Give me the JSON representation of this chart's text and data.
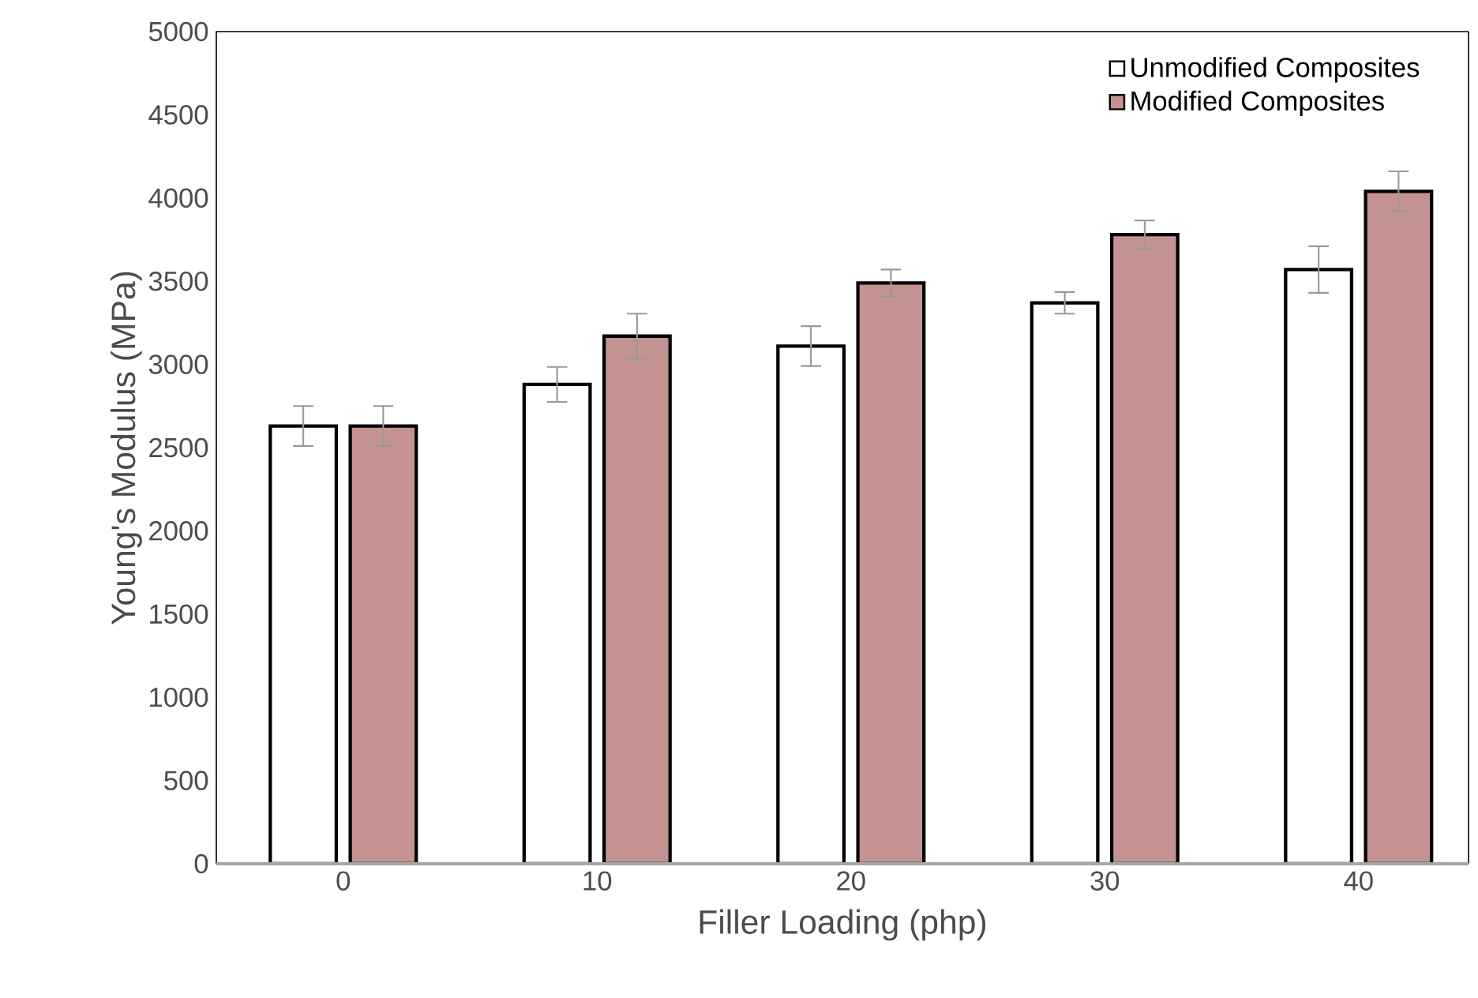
{
  "chart_data": {
    "type": "bar",
    "xlabel": "Filler Loading (php)",
    "ylabel": "Young's Modulus (MPa)",
    "categories": [
      "0",
      "10",
      "20",
      "30",
      "40"
    ],
    "series": [
      {
        "name": "Unmodified Composites",
        "color": "#ffffff",
        "values": [
          2630,
          2880,
          3110,
          3370,
          3570
        ],
        "errors": [
          120,
          105,
          120,
          65,
          140
        ]
      },
      {
        "name": "Modified Composites",
        "color": "#c49391",
        "values": [
          2630,
          3170,
          3490,
          3780,
          4040
        ],
        "errors": [
          120,
          135,
          80,
          85,
          120
        ]
      }
    ],
    "ylim": [
      0,
      5000
    ],
    "yticks": [
      0,
      500,
      1000,
      1500,
      2000,
      2500,
      3000,
      3500,
      4000,
      4500,
      5000
    ],
    "grid": false,
    "legend": "top right"
  }
}
